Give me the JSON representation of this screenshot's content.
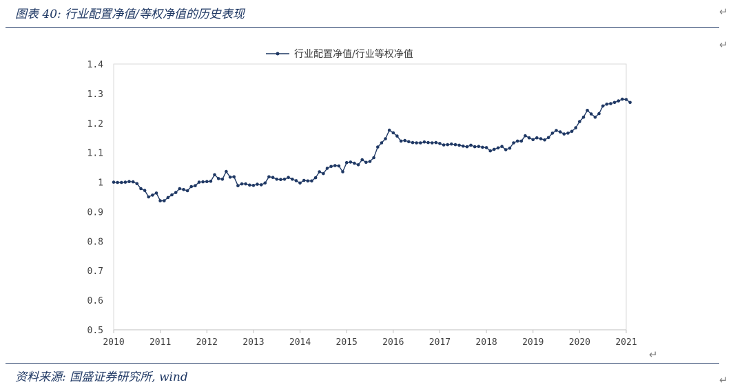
{
  "header": {
    "title": "图表 40: 行业配置净值/等权净值的历史表现"
  },
  "footer": {
    "source": "资料来源: 国盛证券研究所, wind"
  },
  "marks": {
    "paragraph": "↵"
  },
  "colors": {
    "rule": "#1f3864",
    "series": "#1f3864",
    "axis": "#d9d9d9"
  },
  "chart_data": {
    "type": "line",
    "title": "",
    "legend": {
      "position": "top-center"
    },
    "series": [
      {
        "name": "行业配置净值/行业等权净值",
        "values": [
          1.0,
          0.999,
          0.999,
          1.0,
          1.002,
          1.001,
          0.995,
          0.978,
          0.972,
          0.95,
          0.956,
          0.963,
          0.937,
          0.937,
          0.948,
          0.957,
          0.965,
          0.978,
          0.975,
          0.971,
          0.985,
          0.988,
          1.0,
          1.001,
          1.002,
          1.003,
          1.025,
          1.012,
          1.01,
          1.036,
          1.017,
          1.018,
          0.988,
          0.994,
          0.994,
          0.99,
          0.989,
          0.993,
          0.991,
          0.997,
          1.018,
          1.016,
          1.01,
          1.009,
          1.01,
          1.016,
          1.01,
          1.005,
          0.997,
          1.006,
          1.004,
          1.004,
          1.015,
          1.035,
          1.029,
          1.047,
          1.053,
          1.056,
          1.055,
          1.035,
          1.066,
          1.068,
          1.064,
          1.059,
          1.076,
          1.067,
          1.07,
          1.083,
          1.119,
          1.133,
          1.147,
          1.176,
          1.167,
          1.156,
          1.139,
          1.141,
          1.137,
          1.134,
          1.133,
          1.133,
          1.136,
          1.134,
          1.133,
          1.134,
          1.131,
          1.126,
          1.127,
          1.129,
          1.127,
          1.125,
          1.122,
          1.12,
          1.125,
          1.12,
          1.121,
          1.118,
          1.117,
          1.106,
          1.111,
          1.116,
          1.121,
          1.11,
          1.115,
          1.133,
          1.139,
          1.139,
          1.157,
          1.15,
          1.144,
          1.15,
          1.147,
          1.143,
          1.151,
          1.166,
          1.175,
          1.17,
          1.163,
          1.166,
          1.172,
          1.184,
          1.205,
          1.22,
          1.243,
          1.231,
          1.22,
          1.232,
          1.258,
          1.264,
          1.266,
          1.27,
          1.275,
          1.281,
          1.28,
          1.27
        ]
      }
    ],
    "x_start": 2010.0,
    "x_step": 0.08333,
    "x_ticks": [
      "2010",
      "2011",
      "2012",
      "2013",
      "2014",
      "2015",
      "2016",
      "2017",
      "2018",
      "2019",
      "2020",
      "2021"
    ],
    "y_ticks": [
      "1.4",
      "1.3",
      "1.2",
      "1.1",
      "1",
      "0.9",
      "0.8",
      "0.7",
      "0.6",
      "0.5"
    ],
    "ylim": [
      0.5,
      1.4
    ],
    "xlim": [
      2010,
      2021
    ],
    "grid": false
  }
}
